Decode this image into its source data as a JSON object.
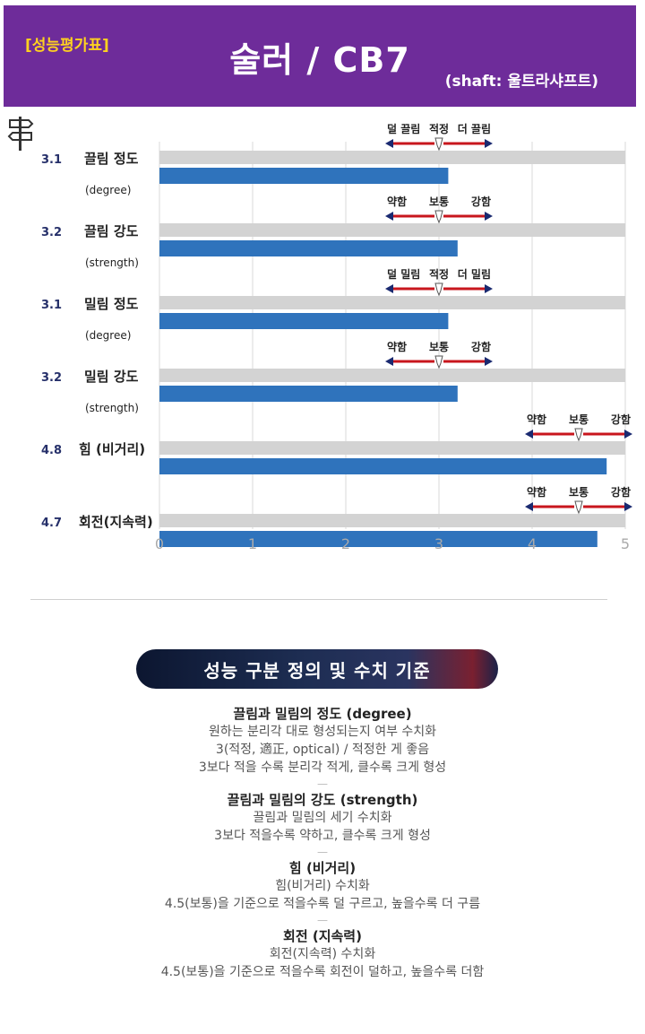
{
  "header": {
    "tag": "[성능평가표]",
    "title": "술러 / CB7",
    "subtitle": "(shaft: 울트라샤프트)",
    "background_color": "#6e2c9a",
    "tag_color": "#ffd21f"
  },
  "chart_data": {
    "type": "bar",
    "orientation": "horizontal",
    "xlim": [
      0,
      5
    ],
    "xticks": [
      "0",
      "1",
      "2",
      "3",
      "4",
      "5"
    ],
    "grid": true,
    "bar_color": "#2f73bc",
    "track_color": "#d3d3d3",
    "rows": [
      {
        "value": 3.1,
        "value_label": "3.1",
        "name": "끌림 정도",
        "sub": "(degree)",
        "guide": [
          "덜 끌림",
          "적정",
          "더 끌림"
        ],
        "guide_center": 3.0
      },
      {
        "value": 3.2,
        "value_label": "3.2",
        "name": "끌림 강도",
        "sub": "(strength)",
        "guide": [
          "약함",
          "보통",
          "강함"
        ],
        "guide_center": 3.0
      },
      {
        "value": 3.1,
        "value_label": "3.1",
        "name": "밀림 정도",
        "sub": "(degree)",
        "guide": [
          "덜 밀림",
          "적정",
          "더 밀림"
        ],
        "guide_center": 3.0
      },
      {
        "value": 3.2,
        "value_label": "3.2",
        "name": "밀림 강도",
        "sub": "(strength)",
        "guide": [
          "약함",
          "보통",
          "강함"
        ],
        "guide_center": 3.0
      },
      {
        "value": 4.8,
        "value_label": "4.8",
        "name": "힘 (비거리)",
        "sub": "",
        "guide": [
          "약함",
          "보통",
          "강함"
        ],
        "guide_center": 4.5
      },
      {
        "value": 4.7,
        "value_label": "4.7",
        "name": "회전(지속력)",
        "sub": "",
        "guide": [
          "약함",
          "보통",
          "강함"
        ],
        "guide_center": 4.5
      }
    ]
  },
  "section": {
    "banner": "성능 구분 정의 및 수치 기준",
    "separator": "—",
    "blocks": [
      {
        "title": "끌림과 밀림의 정도 (degree)",
        "lines": [
          "원하는 분리각 대로 형성되는지 여부 수치화",
          "3(적정, 適正, optical) / 적정한 게 좋음",
          "3보다 적을 수록 분리각 적게, 클수록 크게 형성"
        ]
      },
      {
        "title": "끌림과 밀림의 강도 (strength)",
        "lines": [
          "끌림과 밀림의 세기 수치화",
          "3보다 적을수록 약하고, 클수록 크게 형성"
        ]
      },
      {
        "title": "힘 (비거리)",
        "lines": [
          "힘(비거리) 수치화",
          "4.5(보통)을 기준으로 적을수록 덜 구르고, 높을수록 더 구름"
        ]
      },
      {
        "title": "회전 (지속력)",
        "lines": [
          "회전(지속력) 수치화",
          "4.5(보통)을 기준으로 적을수록 회전이 덜하고, 높을수록 더함"
        ]
      }
    ]
  }
}
